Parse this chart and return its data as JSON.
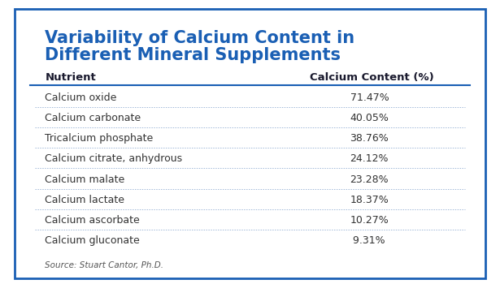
{
  "title_line1": "Variability of Calcium Content in",
  "title_line2": "Different Mineral Supplements",
  "title_color": "#1a5fb4",
  "col1_header": "Nutrient",
  "col2_header": "Calcium Content (%)",
  "header_color": "#1a1a2e",
  "rows": [
    [
      "Calcium oxide",
      "71.47%"
    ],
    [
      "Calcium carbonate",
      "40.05%"
    ],
    [
      "Tricalcium phosphate",
      "38.76%"
    ],
    [
      "Calcium citrate, anhydrous",
      "24.12%"
    ],
    [
      "Calcium malate",
      "23.28%"
    ],
    [
      "Calcium lactate",
      "18.37%"
    ],
    [
      "Calcium ascorbate",
      "10.27%"
    ],
    [
      "Calcium gluconate",
      " 9.31%"
    ]
  ],
  "source_text": "Source: Stuart Cantor, Ph.D.",
  "border_color": "#1a5fb4",
  "bg_color": "#ffffff",
  "row_text_color": "#333333",
  "divider_color": "#a0b8d8",
  "header_line_color": "#1a5fb4",
  "title_fontsize": 15,
  "header_fontsize": 9.5,
  "row_fontsize": 9,
  "source_fontsize": 7.5
}
